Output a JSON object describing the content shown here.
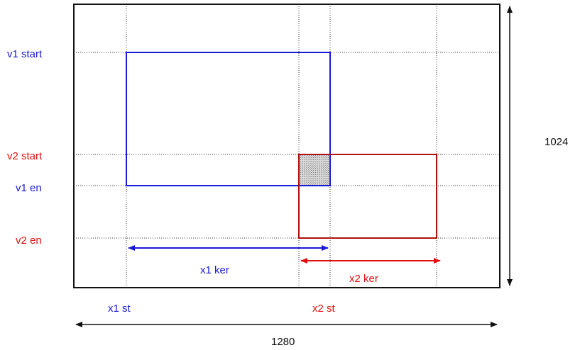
{
  "labels": {
    "v1_start": "v1  start",
    "v2_start": "v2  start",
    "v1_end": "v1  en",
    "v2_end": "v2  en",
    "x1_ker": "x1  ker",
    "x2_ker": "x2  ker",
    "x1_st": "x1  st",
    "x2_st": "x2  st",
    "width": "1280",
    "height": "1024"
  },
  "colors": {
    "window1": "#1a1ad6",
    "window2": "#e01010",
    "frame": "#111111",
    "overlap": "#a8a8a8"
  }
}
